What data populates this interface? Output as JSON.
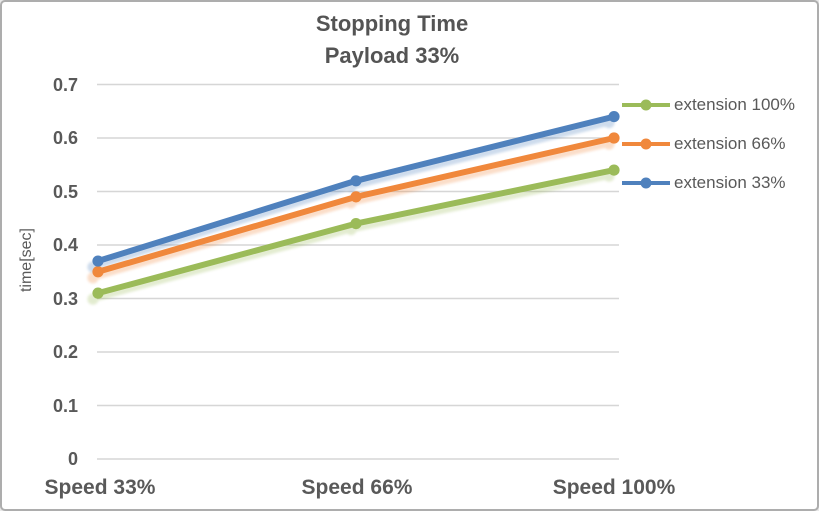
{
  "frame": {
    "background": "#ffffff",
    "border_color": "#adadad"
  },
  "chart_data": {
    "type": "line",
    "title": "Stopping Time",
    "subtitle": "Payload 33%",
    "ylabel": "time[sec]",
    "xlabel": "",
    "categories": [
      "Speed 33%",
      "Speed 66%",
      "Speed 100%"
    ],
    "series": [
      {
        "name": "extension 100%",
        "color": "#9bbb59",
        "values": [
          0.31,
          0.44,
          0.54
        ]
      },
      {
        "name": "extension 66%",
        "color": "#f0883c",
        "values": [
          0.35,
          0.49,
          0.6
        ]
      },
      {
        "name": "extension 33%",
        "color": "#4f81bd",
        "values": [
          0.37,
          0.52,
          0.64
        ]
      }
    ],
    "ylim": [
      0,
      0.7
    ],
    "y_ticks": [
      0,
      0.1,
      0.2,
      0.3,
      0.4,
      0.5,
      0.6,
      0.7
    ],
    "y_tick_labels": [
      "0",
      "0.1",
      "0.2",
      "0.3",
      "0.4",
      "0.5",
      "0.6",
      "0.7"
    ],
    "grid": true,
    "legend_position": "right",
    "text_color": "#595959",
    "gridline_color": "#d6d6d6"
  }
}
